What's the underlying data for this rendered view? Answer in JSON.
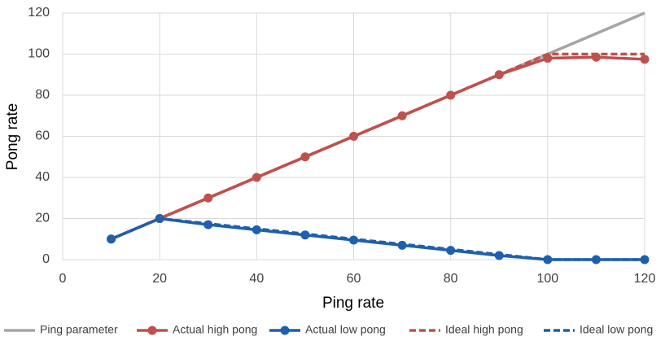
{
  "chart_data": {
    "type": "line",
    "x_label": "Ping rate",
    "y_label": "Pong rate",
    "x": [
      10,
      20,
      30,
      40,
      50,
      60,
      70,
      80,
      90,
      100,
      110,
      120
    ],
    "xlim": [
      0,
      120
    ],
    "xticks": [
      0,
      20,
      40,
      60,
      80,
      100,
      120
    ],
    "ylim": [
      0,
      120
    ],
    "yticks": [
      0,
      20,
      40,
      60,
      80,
      100,
      120
    ],
    "grid": true,
    "legend": "bottom",
    "series": [
      {
        "name": "Ping parameter",
        "color": "#a5a5a5",
        "dashed": false,
        "markers": false,
        "values": [
          10,
          20,
          30,
          40,
          50,
          60,
          70,
          80,
          90,
          100,
          110,
          120
        ]
      },
      {
        "name": "Actual high pong",
        "color": "#c0504d",
        "dashed": false,
        "markers": true,
        "values": [
          10,
          20,
          30,
          40,
          50,
          60,
          70,
          80,
          90,
          98,
          98.5,
          97.5
        ]
      },
      {
        "name": "Actual low pong",
        "color": "#1f5fad",
        "dashed": false,
        "markers": true,
        "values": [
          10,
          20,
          17,
          14.5,
          12,
          9.5,
          7,
          4.5,
          2,
          0,
          0,
          0
        ]
      },
      {
        "name": "Ideal high pong",
        "color": "#c0504d",
        "dashed": true,
        "markers": false,
        "values": [
          10,
          20,
          30,
          40,
          50,
          60,
          70,
          80,
          90,
          100,
          100,
          100
        ]
      },
      {
        "name": "Ideal low pong",
        "color": "#1f5fad",
        "dashed": true,
        "markers": false,
        "values": [
          10,
          20,
          17.5,
          15,
          12.5,
          10,
          7.5,
          5,
          2.5,
          0,
          0,
          0
        ]
      }
    ]
  }
}
